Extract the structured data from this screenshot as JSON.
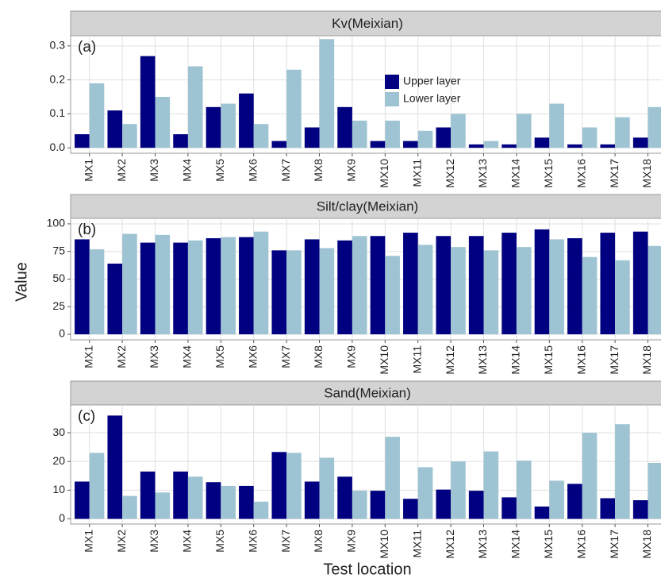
{
  "ylabel": "Value",
  "xlabel": "Test location",
  "chart_data": [
    {
      "type": "bar",
      "title": "Kv(Meixian)",
      "annotation": "(a)",
      "legend": true,
      "legend_position": "inside",
      "categories": [
        "MX1",
        "MX2",
        "MX3",
        "MX4",
        "MX5",
        "MX6",
        "MX7",
        "MX8",
        "MX9",
        "MX10",
        "MX11",
        "MX12",
        "MX13",
        "MX14",
        "MX15",
        "MX16",
        "MX17",
        "MX18"
      ],
      "series": [
        {
          "name": "Upper layer",
          "color": "#000080",
          "values": [
            0.04,
            0.11,
            0.27,
            0.04,
            0.12,
            0.16,
            0.02,
            0.06,
            0.12,
            0.02,
            0.02,
            0.06,
            0.01,
            0.01,
            0.03,
            0.01,
            0.01,
            0.03
          ]
        },
        {
          "name": "Lower layer",
          "color": "#9ec3d2",
          "values": [
            0.19,
            0.07,
            0.15,
            0.24,
            0.13,
            0.07,
            0.23,
            0.32,
            0.08,
            0.08,
            0.05,
            0.1,
            0.02,
            0.1,
            0.13,
            0.06,
            0.09,
            0.12
          ]
        }
      ],
      "ylim": [
        -0.016,
        0.33
      ],
      "yticks": [
        {
          "value": 0,
          "label": "0.0"
        },
        0.1,
        0.2,
        0.3
      ],
      "grid": true
    },
    {
      "type": "bar",
      "title": "Silt/clay(Meixian)",
      "annotation": "(b)",
      "legend": false,
      "categories": [
        "MX1",
        "MX2",
        "MX3",
        "MX4",
        "MX5",
        "MX6",
        "MX7",
        "MX8",
        "MX9",
        "MX10",
        "MX11",
        "MX12",
        "MX13",
        "MX14",
        "MX15",
        "MX16",
        "MX17",
        "MX18"
      ],
      "series": [
        {
          "name": "Upper layer",
          "color": "#000080",
          "values": [
            86,
            64,
            83,
            83,
            87,
            88,
            76,
            86,
            85,
            89,
            92,
            89,
            89,
            92,
            95,
            87,
            92,
            93
          ]
        },
        {
          "name": "Lower layer",
          "color": "#9ec3d2",
          "values": [
            77,
            91,
            90,
            85,
            88,
            93,
            76,
            78,
            89,
            71,
            81,
            79,
            76,
            79,
            86,
            70,
            67,
            80
          ]
        }
      ],
      "ylim": [
        -5,
        105
      ],
      "yticks": [
        0,
        25,
        50,
        75,
        100
      ],
      "grid": true
    },
    {
      "type": "bar",
      "title": "Sand(Meixian)",
      "annotation": "(c)",
      "legend": false,
      "categories": [
        "MX1",
        "MX2",
        "MX3",
        "MX4",
        "MX5",
        "MX6",
        "MX7",
        "MX8",
        "MX9",
        "MX10",
        "MX11",
        "MX12",
        "MX13",
        "MX14",
        "MX15",
        "MX16",
        "MX17",
        "MX18"
      ],
      "series": [
        {
          "name": "Upper layer",
          "color": "#000080",
          "values": [
            13,
            36,
            16.5,
            16.5,
            12.8,
            11.5,
            23.3,
            13,
            14.7,
            9.8,
            7,
            10.2,
            9.8,
            7.5,
            4.3,
            12.2,
            7.2,
            6.5
          ]
        },
        {
          "name": "Lower layer",
          "color": "#9ec3d2",
          "values": [
            23,
            8,
            9.2,
            14.7,
            11.5,
            6,
            23,
            21.3,
            9.8,
            28.6,
            18,
            20,
            23.5,
            20.3,
            13.3,
            30,
            33,
            19.5
          ]
        }
      ],
      "ylim": [
        -1.8,
        39.7
      ],
      "yticks": [
        0,
        10,
        20,
        30
      ],
      "grid": true
    }
  ]
}
